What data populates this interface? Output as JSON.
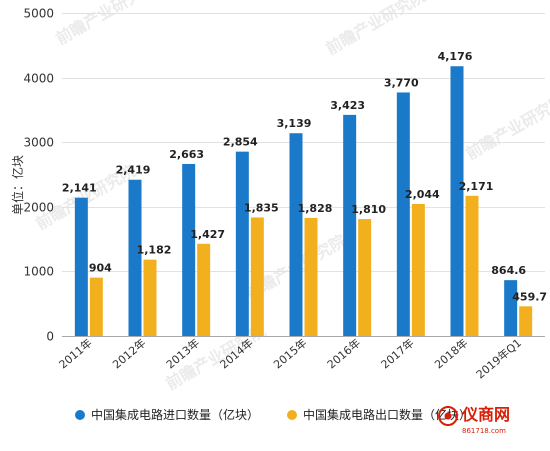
{
  "chart_data": {
    "type": "bar",
    "categories": [
      "2011年",
      "2012年",
      "2013年",
      "2014年",
      "2015年",
      "2016年",
      "2017年",
      "2018年",
      "2019年Q1"
    ],
    "series": [
      {
        "name": "中国集成电路进口数量（亿块）",
        "color": "#1a7ac9",
        "values": [
          2141,
          2419,
          2663,
          2854,
          3139,
          3423,
          3770,
          4176,
          864.6
        ],
        "labels": [
          "2,141",
          "2,419",
          "2,663",
          "2,854",
          "3,139",
          "3,423",
          "3,770",
          "4,176",
          "864.6"
        ]
      },
      {
        "name": "中国集成电路出口数量（亿块）",
        "color": "#f2b01e",
        "values": [
          904,
          1182,
          1427,
          1835,
          1828,
          1810,
          2044,
          2171,
          459.7
        ],
        "labels": [
          "904",
          "1,182",
          "1,427",
          "1,835",
          "1,828",
          "1,810",
          "2,044",
          "2,171",
          "459.7"
        ]
      }
    ],
    "ylabel": "单位：亿块",
    "ylim": [
      0,
      5000
    ],
    "yticks": [
      0,
      1000,
      2000,
      3000,
      4000,
      5000
    ],
    "grid": true,
    "legend_position": "bottom"
  },
  "watermark": {
    "text": "前瞻产业研究院"
  },
  "brand": {
    "title": "仪商网",
    "url": "861718.com"
  }
}
